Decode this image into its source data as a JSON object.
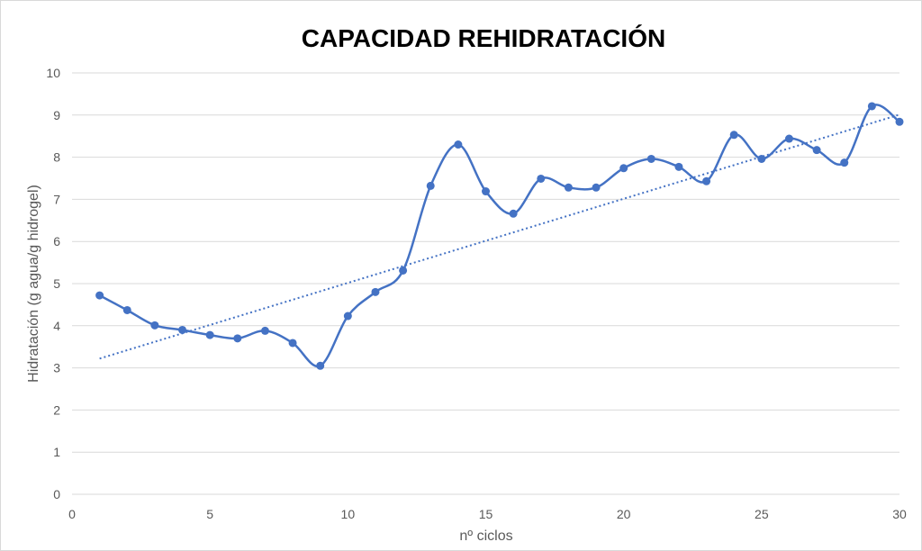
{
  "chart_data": {
    "type": "line",
    "title": "CAPACIDAD REHIDRATACIÓN",
    "xlabel": "nº ciclos",
    "ylabel": "Hidratación  (g agua/g hidrogel)",
    "xlim": [
      0,
      30
    ],
    "ylim": [
      0,
      10
    ],
    "xticks": [
      0,
      5,
      10,
      15,
      20,
      25,
      30
    ],
    "yticks": [
      0,
      1,
      2,
      3,
      4,
      5,
      6,
      7,
      8,
      9,
      10
    ],
    "grid": "horizontal",
    "smooth": true,
    "series": [
      {
        "x": [
          1,
          2,
          3,
          4,
          5,
          6,
          7,
          8,
          9,
          10,
          11,
          12,
          13,
          14,
          15,
          16,
          17,
          18,
          19,
          20,
          21,
          22,
          23,
          24,
          25,
          26,
          27,
          28,
          29,
          30
        ],
        "values": [
          4.72,
          4.37,
          4.01,
          3.9,
          3.78,
          3.7,
          3.88,
          3.59,
          3.05,
          4.23,
          4.8,
          5.31,
          7.32,
          8.3,
          7.19,
          6.66,
          7.49,
          7.28,
          7.28,
          7.74,
          7.96,
          7.77,
          7.43,
          8.53,
          7.96,
          8.44,
          8.17,
          7.87,
          9.21,
          8.84
        ],
        "color": "#4472C4",
        "marker": "circle"
      }
    ],
    "trendline": {
      "type": "linear",
      "x": [
        1,
        30
      ],
      "values": [
        3.22,
        9.01
      ],
      "color": "#4472C4",
      "style": "dotted"
    }
  }
}
